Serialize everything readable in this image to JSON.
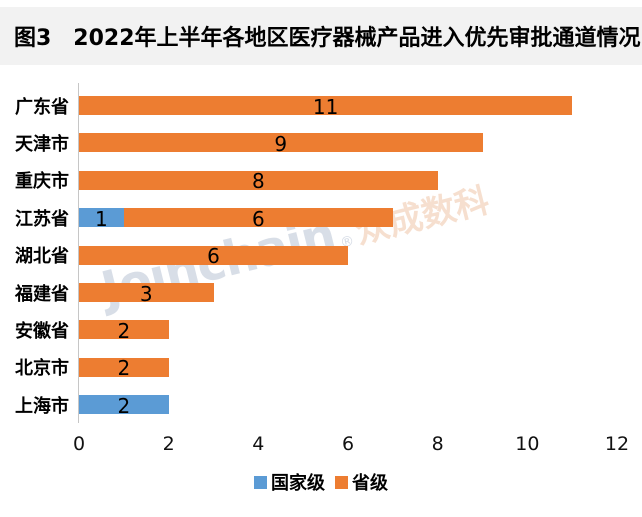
{
  "title": "图3　2022年上半年各地区医疗器械产品进入优先审批通道情况",
  "watermark": {
    "latin": "Joinchain",
    "registered": "®",
    "cn": "众成数科"
  },
  "chart_data": {
    "type": "bar",
    "orientation": "horizontal",
    "stacked": true,
    "title": "图3　2022年上半年各地区医疗器械产品进入优先审批通道情况",
    "categories": [
      "广东省",
      "天津市",
      "重庆市",
      "江苏省",
      "湖北省",
      "福建省",
      "安徽省",
      "北京市",
      "上海市"
    ],
    "series": [
      {
        "name": "国家级",
        "color": "#5B9BD5",
        "values": [
          0,
          0,
          0,
          1,
          0,
          0,
          0,
          0,
          2
        ]
      },
      {
        "name": "省级",
        "color": "#ED7D31",
        "values": [
          11,
          9,
          8,
          6,
          6,
          3,
          2,
          2,
          0
        ]
      }
    ],
    "totals": [
      11,
      9,
      8,
      7,
      6,
      3,
      2,
      2,
      2
    ],
    "xlim": [
      0,
      12
    ],
    "x_ticks": [
      "0",
      "2",
      "4",
      "6",
      "8",
      "10",
      "12"
    ],
    "grid": false,
    "value_labels": "inside-center",
    "legend_position": "bottom"
  },
  "colors": {
    "background": "#FFFFFF",
    "title_bar_bg": "#F2F2F2",
    "axis_line": "#C6C6C6",
    "text": "#000000"
  }
}
